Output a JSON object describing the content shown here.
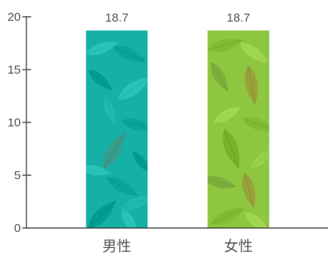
{
  "chart_data": {
    "type": "bar",
    "categories": [
      "男性",
      "女性"
    ],
    "values": [
      18.7,
      18.7
    ],
    "data_labels": [
      "18.7",
      "18.7"
    ],
    "ylim": [
      0,
      20
    ],
    "yticks": [
      0,
      5,
      10,
      15,
      20
    ],
    "grid": false,
    "legend": "none",
    "bar_colors": [
      "#15b1a6",
      "#8dc63f"
    ],
    "bar_fill": "leaf-pattern"
  }
}
